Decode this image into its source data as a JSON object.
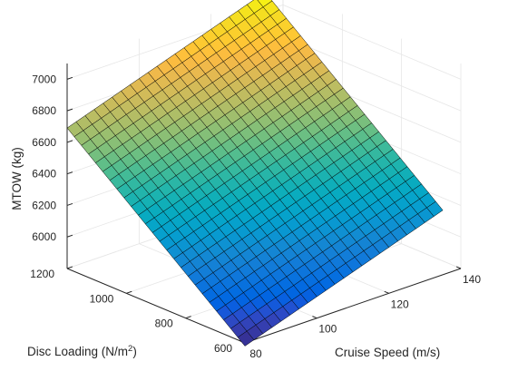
{
  "chart_data": {
    "type": "surface",
    "title": "",
    "x": {
      "label": "Cruise Speed (m/s)",
      "range": [
        80,
        140
      ],
      "ticks": [
        80,
        100,
        120,
        140
      ],
      "tick_labels": [
        "80",
        "100",
        "120",
        "140"
      ]
    },
    "y": {
      "label_text": "Disc Loading (N/m",
      "label_sup": "2",
      "label_end": ")",
      "range": [
        600,
        1200
      ],
      "ticks": [
        600,
        800,
        1000,
        1200
      ],
      "tick_labels": [
        "600",
        "800",
        "1000",
        "1200"
      ]
    },
    "z": {
      "label": "MTOW (kg)",
      "range": [
        5800,
        7100
      ],
      "ticks": [
        6000,
        6200,
        6400,
        6600,
        6800,
        7000
      ],
      "tick_labels": [
        "6000",
        "6200",
        "6400",
        "6600",
        "6800",
        "7000"
      ]
    },
    "surface": {
      "x_range": [
        80,
        135
      ],
      "y_range": [
        600,
        1200
      ],
      "z_min": 5780,
      "z_max": 7120,
      "x_steps": 22,
      "y_steps": 25,
      "colormap": "parula"
    },
    "grid": true,
    "colors": {
      "axis": "#262626",
      "grid": "#e6e6e6",
      "edge": "#000000"
    }
  }
}
